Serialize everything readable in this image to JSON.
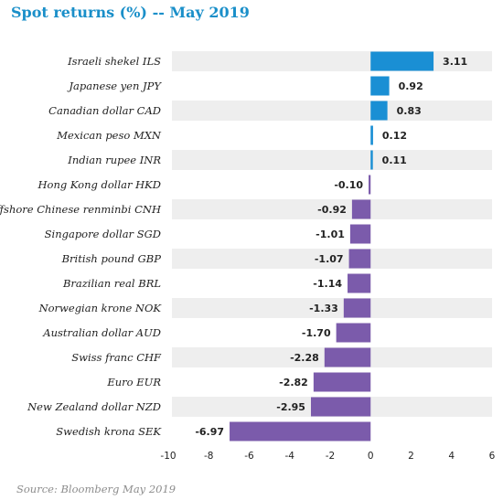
{
  "title": "Spot returns (%) -- May 2019",
  "source": "Source: Bloomberg May 2019",
  "colors": {
    "positive": "#1a8fd4",
    "negative": "#7b5bab",
    "title": "#1a8fc9",
    "band": "#eeeeee"
  },
  "chart_data": {
    "type": "bar",
    "orientation": "horizontal",
    "categories": [
      "Israeli shekel ILS",
      "Japanese yen JPY",
      "Canadian dollar CAD",
      "Mexican peso MXN",
      "Indian rupee INR",
      "Hong Kong dollar HKD",
      "Offshore Chinese renminbi CNH",
      "Singapore dollar SGD",
      "British pound GBP",
      "Brazilian real BRL",
      "Norwegian krone NOK",
      "Australian dollar AUD",
      "Swiss franc CHF",
      "Euro EUR",
      "New Zealand dollar NZD",
      "Swedish krona SEK"
    ],
    "values": [
      3.11,
      0.92,
      0.83,
      0.12,
      0.11,
      -0.1,
      -0.92,
      -1.01,
      -1.07,
      -1.14,
      -1.33,
      -1.7,
      -2.28,
      -2.82,
      -2.95,
      -6.97
    ],
    "value_labels": [
      "3.11",
      "0.92",
      "0.83",
      "0.12",
      "0.11",
      "-0.10",
      "-0.92",
      "-1.01",
      "-1.07",
      "-1.14",
      "-1.33",
      "-1.70",
      "-2.28",
      "-2.82",
      "-2.95",
      "-6.97"
    ],
    "xlim": [
      -10,
      6
    ],
    "xticks": [
      -10,
      -8,
      -6,
      -4,
      -2,
      0,
      2,
      4,
      6
    ],
    "xtick_labels": [
      "-10",
      "-8",
      "-6",
      "-4",
      "-2",
      "0",
      "2",
      "4",
      "6"
    ],
    "grid": false,
    "legend": "none"
  }
}
